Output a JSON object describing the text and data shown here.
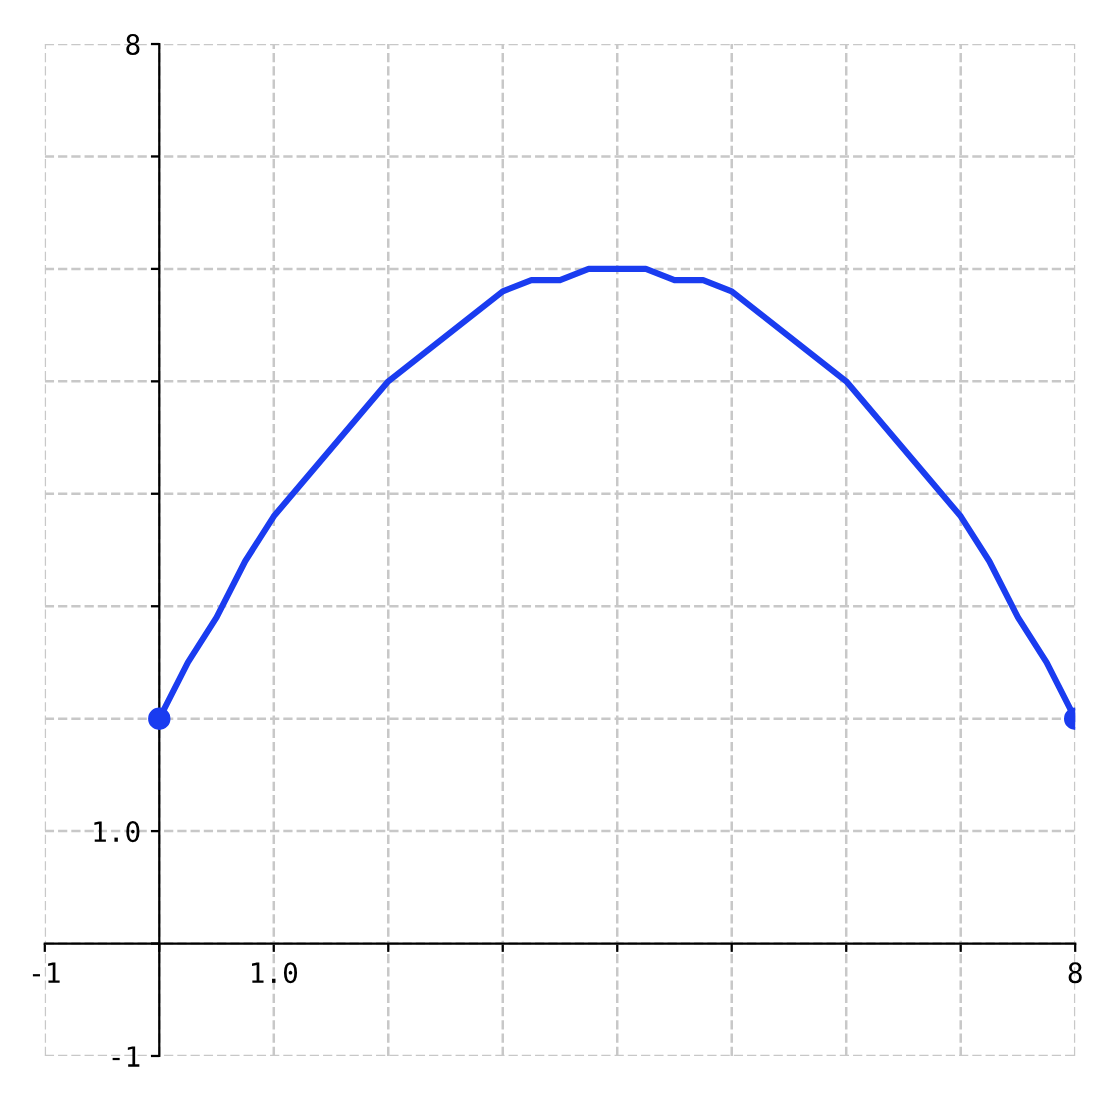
{
  "chart_data": {
    "type": "line",
    "series": [
      {
        "color": "#1a3cf0",
        "marker": "none",
        "x": [
          0,
          0.25,
          0.5,
          0.75,
          1,
          1.25,
          1.5,
          1.75,
          2,
          2.25,
          2.5,
          2.75,
          3,
          3.25,
          3.5,
          3.75,
          4,
          4.25,
          4.5,
          4.75,
          5,
          5.25,
          5.5,
          5.75,
          6,
          6.25,
          6.5,
          6.75,
          7,
          7.25,
          7.5,
          7.75,
          8
        ],
        "values": [
          2,
          2.5,
          2.9,
          3.4,
          3.8,
          4.1,
          4.4,
          4.7,
          5,
          5.2,
          5.4,
          5.6,
          5.8,
          5.9,
          5.9,
          6,
          6,
          6,
          5.9,
          5.9,
          5.8,
          5.6,
          5.4,
          5.2,
          5,
          4.7,
          4.4,
          4.1,
          3.8,
          3.4,
          2.9,
          2.5,
          2
        ]
      },
      {
        "type": "scatter",
        "color": "#1a3cf0",
        "marker": "circle",
        "x": [
          0,
          8
        ],
        "values": [
          2,
          2
        ]
      }
    ],
    "xlim": [
      -1,
      8
    ],
    "ylim": [
      -1,
      8
    ],
    "xticks": [
      -1,
      {
        "value": 0,
        "label": null
      },
      {
        "value": 1,
        "label": "1.0"
      },
      {
        "value": 2,
        "label": null
      },
      {
        "value": 3,
        "label": null
      },
      {
        "value": 4,
        "label": null
      },
      {
        "value": 5,
        "label": null
      },
      {
        "value": 6,
        "label": null
      },
      {
        "value": 7,
        "label": null
      },
      8
    ],
    "yticks": [
      -1,
      {
        "value": 0,
        "label": null
      },
      {
        "value": 1,
        "label": "1.0"
      },
      {
        "value": 2,
        "label": null
      },
      {
        "value": 3,
        "label": null
      },
      {
        "value": 4,
        "label": null
      },
      {
        "value": 5,
        "label": null
      },
      {
        "value": 6,
        "label": null
      },
      {
        "value": 7,
        "label": null
      },
      8
    ],
    "grid": true,
    "line_style": "solid"
  }
}
